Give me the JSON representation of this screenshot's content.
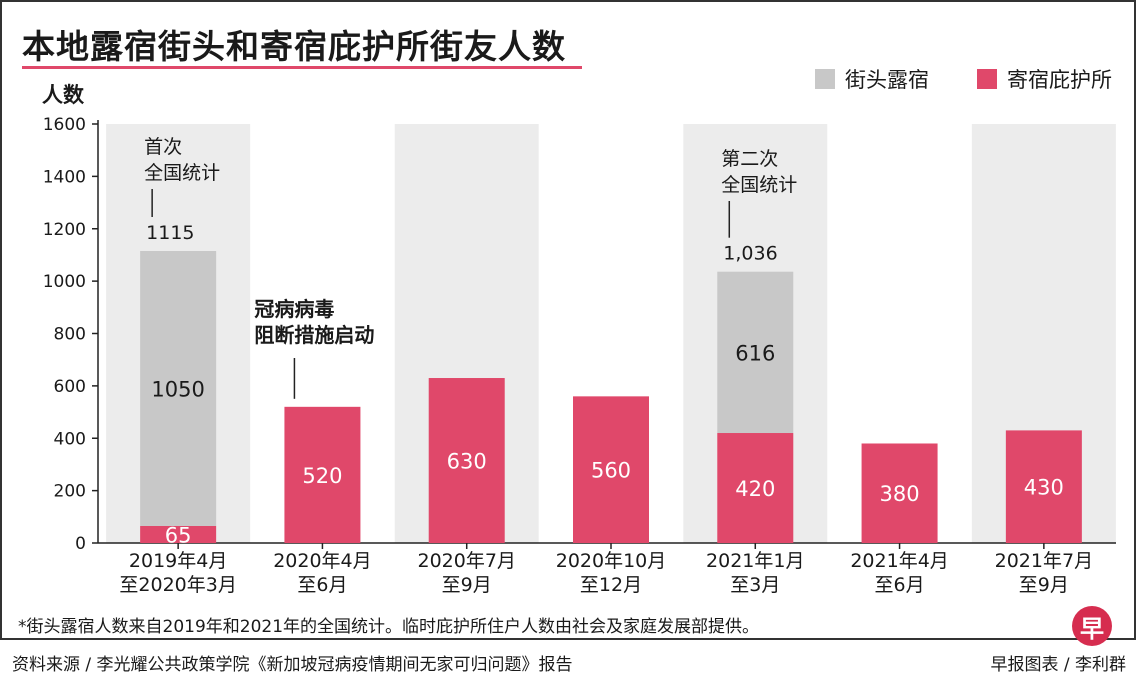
{
  "title": "本地露宿街头和寄宿庇护所街友人数",
  "footnote": "*街头露宿人数来自2019年和2021年的全国统计。临时庇护所住户人数由社会及家庭发展部提供。",
  "source": "资料来源 / 李光耀公共政策学院《新加坡冠病疫情期间无家可归问题》报告",
  "credit": "早报图表 / 李利群",
  "logo_text": "早",
  "colors": {
    "street": "#c8c8c8",
    "shelter": "#e0486a",
    "band": "#ececec",
    "accent": "#e0486a"
  },
  "chart_data": {
    "type": "bar",
    "stacked": true,
    "ylabel": "人数",
    "ylim": [
      0,
      1600
    ],
    "yticks": [
      0,
      200,
      400,
      600,
      800,
      1000,
      1200,
      1400,
      1600
    ],
    "categories": [
      [
        "2019年4月",
        "至2020年3月"
      ],
      [
        "2020年4月",
        "至6月"
      ],
      [
        "2020年7月",
        "至9月"
      ],
      [
        "2020年10月",
        "至12月"
      ],
      [
        "2021年1月",
        "至3月"
      ],
      [
        "2021年4月",
        "至6月"
      ],
      [
        "2021年7月",
        "至9月"
      ]
    ],
    "series": [
      {
        "name": "寄宿庇护所",
        "color": "#e0486a",
        "values": [
          65,
          520,
          630,
          560,
          420,
          380,
          430
        ]
      },
      {
        "name": "街头露宿",
        "color": "#c8c8c8",
        "values": [
          1050,
          0,
          0,
          0,
          616,
          0,
          0
        ]
      }
    ],
    "legend": {
      "position": "top-right",
      "order": [
        "街头露宿",
        "寄宿庇护所"
      ]
    },
    "totals": [
      {
        "index": 0,
        "label": "1115"
      },
      {
        "index": 4,
        "label": "1,036"
      }
    ],
    "annotations": [
      {
        "index": 0,
        "lines": [
          "首次",
          "全国统计"
        ]
      },
      {
        "index": 4,
        "lines": [
          "第二次",
          "全国统计"
        ]
      },
      {
        "index": 1,
        "lines": [
          "冠病病毒",
          "阻断措施启动"
        ]
      }
    ]
  }
}
